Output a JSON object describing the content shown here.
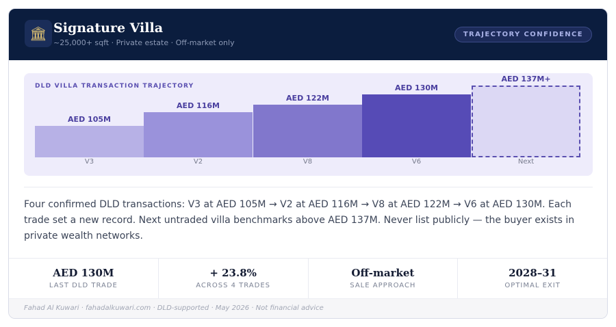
{
  "header": {
    "logo_glyph": "🏛",
    "title": "Signature Villa",
    "subtitle": "~25,000+ sqft · Private estate · Off-market only",
    "badge": "TRAJECTORY CONFIDENCE"
  },
  "chart_data": {
    "type": "bar",
    "title": "DLD VILLA TRANSACTION TRAJECTORY",
    "xlabel": "",
    "ylabel": "",
    "categories": [
      "V3",
      "V2",
      "V8",
      "V6",
      "Next"
    ],
    "values": [
      105,
      116,
      122,
      130,
      137
    ],
    "labels": [
      "AED 105M",
      "AED 116M",
      "AED 122M",
      "AED 130M",
      "AED 137M+"
    ],
    "colors": [
      "#b7b1e6",
      "#9a92db",
      "#8177cc",
      "#564bb6",
      "#dcd8f4"
    ],
    "projected": [
      false,
      false,
      false,
      false,
      true
    ],
    "projected_border": "#5a4fb0",
    "grid": false
  },
  "description": "Four confirmed DLD transactions: V3 at AED 105M → V2 at AED 116M → V8 at AED 122M → V6 at AED 130M. Each trade set a new record. Next untraded villa benchmarks above AED 137M. Never list publicly — the buyer exists in private wealth networks.",
  "stats": [
    {
      "value": "AED 130M",
      "label": "LAST DLD TRADE"
    },
    {
      "value": "+ 23.8%",
      "label": "ACROSS 4 TRADES"
    },
    {
      "value": "Off-market",
      "label": "SALE APPROACH"
    },
    {
      "value": "2028–31",
      "label": "OPTIMAL EXIT"
    }
  ],
  "footer": "Fahad Al Kuwari · fahadalkuwari.com · DLD-supported · May 2026 · Not financial advice"
}
